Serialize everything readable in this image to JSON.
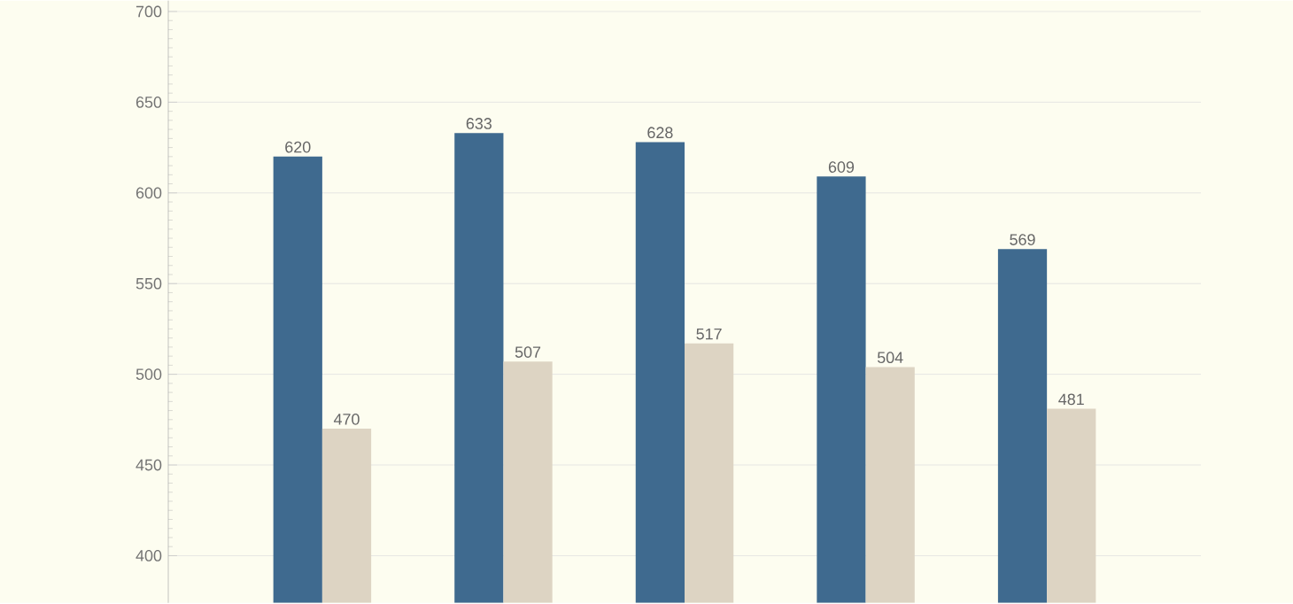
{
  "chart_data": {
    "type": "bar",
    "categories": [
      null,
      null,
      null,
      null,
      null
    ],
    "series": [
      {
        "color": "#3f6a8f",
        "values": [
          620,
          633,
          628,
          609,
          569
        ]
      },
      {
        "color": "#ddd4c3",
        "values": [
          470,
          507,
          517,
          504,
          481
        ]
      }
    ],
    "ylim": [
      374,
      706
    ],
    "yticks": [
      400,
      450,
      500,
      550,
      600,
      650,
      700
    ],
    "grid": "y",
    "data_labels": true,
    "tick_labels": "y"
  }
}
